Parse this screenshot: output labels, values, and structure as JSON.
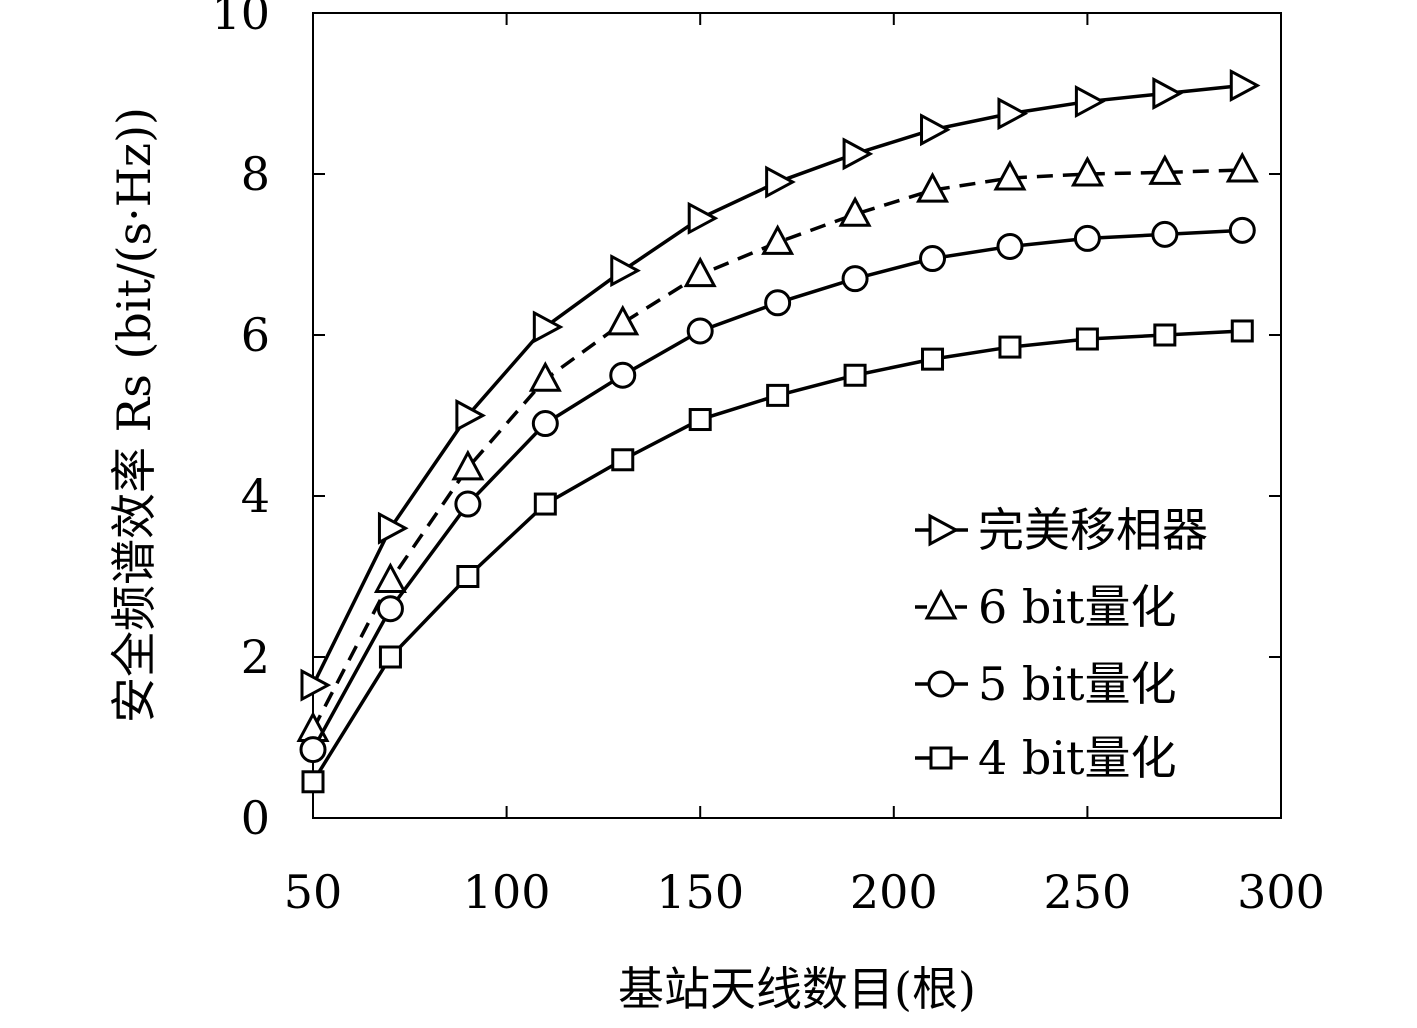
{
  "chart_data": {
    "type": "line",
    "title": "",
    "xlabel": "基站天线数目(根)",
    "ylabel": "安全频谱效率 Rs (bit/(s·Hz))",
    "xlim": [
      50,
      300
    ],
    "ylim": [
      0,
      10
    ],
    "xticks": [
      50,
      100,
      150,
      200,
      250,
      300
    ],
    "yticks": [
      0,
      2,
      4,
      6,
      8,
      10
    ],
    "grid": false,
    "legend_position": "bottom-right",
    "x": [
      50,
      70,
      90,
      110,
      130,
      150,
      170,
      190,
      210,
      230,
      250,
      270,
      290
    ],
    "series": [
      {
        "name": "完美移相器",
        "marker": "triangle-right",
        "line_style": "solid",
        "values": [
          1.65,
          3.6,
          5.0,
          6.1,
          6.8,
          7.45,
          7.9,
          8.25,
          8.55,
          8.75,
          8.9,
          9.0,
          9.1
        ]
      },
      {
        "name": "6 bit量化",
        "marker": "triangle-up",
        "line_style": "dashed",
        "values": [
          1.1,
          2.95,
          4.35,
          5.45,
          6.15,
          6.75,
          7.15,
          7.5,
          7.8,
          7.95,
          8.0,
          8.02,
          8.05
        ]
      },
      {
        "name": "5 bit量化",
        "marker": "circle",
        "line_style": "solid",
        "values": [
          0.85,
          2.6,
          3.9,
          4.9,
          5.5,
          6.05,
          6.4,
          6.7,
          6.95,
          7.1,
          7.2,
          7.25,
          7.3
        ]
      },
      {
        "name": "4 bit量化",
        "marker": "square",
        "line_style": "solid",
        "values": [
          0.45,
          2.0,
          3.0,
          3.9,
          4.45,
          4.95,
          5.25,
          5.5,
          5.7,
          5.85,
          5.95,
          6.0,
          6.05
        ]
      }
    ],
    "colors": {
      "line": "#000000",
      "background": "#ffffff"
    }
  }
}
